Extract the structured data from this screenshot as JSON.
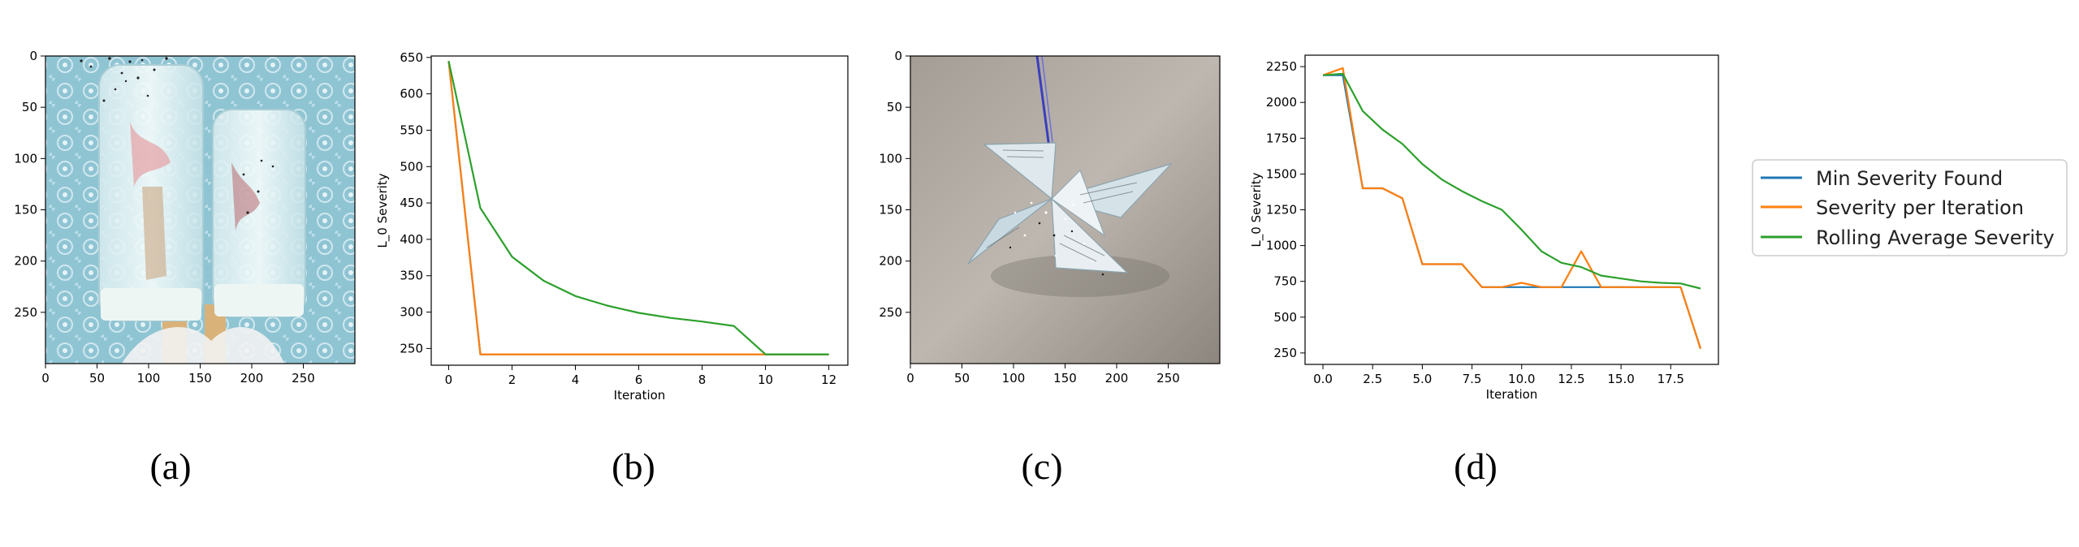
{
  "captions": [
    "(a)",
    "(b)",
    "(c)",
    "(d)"
  ],
  "colors": {
    "min_severity": "#1f77b4",
    "severity_per_iteration": "#ff7f0e",
    "rolling_average": "#2ca02c"
  },
  "legend": {
    "items": [
      "Min Severity Found",
      "Severity per Iteration",
      "Rolling Average Severity"
    ]
  },
  "images": {
    "a": {
      "subject": "popsicles",
      "x_ticks": [
        "0",
        "50",
        "100",
        "150",
        "200",
        "250"
      ],
      "y_ticks": [
        "0",
        "50",
        "100",
        "150",
        "200",
        "250"
      ]
    },
    "c": {
      "subject": "paper-pinwheel",
      "x_ticks": [
        "0",
        "50",
        "100",
        "150",
        "200",
        "250"
      ],
      "y_ticks": [
        "0",
        "50",
        "100",
        "150",
        "200",
        "250"
      ]
    }
  },
  "chart_data": [
    {
      "id": "b",
      "type": "line",
      "xlabel": "Iteration",
      "ylabel": "L_0 Severity",
      "xlim": [
        -0.55,
        12.6
      ],
      "ylim": [
        227,
        652
      ],
      "x_ticks": [
        0,
        2,
        4,
        6,
        8,
        10,
        12
      ],
      "x_tick_labels": [
        "0",
        "2",
        "4",
        "6",
        "8",
        "10",
        "12"
      ],
      "y_ticks": [
        250,
        300,
        350,
        400,
        450,
        500,
        550,
        600,
        650
      ],
      "y_tick_labels": [
        "250",
        "300",
        "350",
        "400",
        "450",
        "500",
        "550",
        "600",
        "650"
      ],
      "series": [
        {
          "name": "Min Severity Found",
          "x": [
            0,
            1,
            2,
            3,
            4,
            5,
            6,
            7,
            8,
            9,
            10,
            11,
            12
          ],
          "values": [
            645,
            242,
            242,
            242,
            242,
            242,
            242,
            242,
            242,
            242,
            242,
            242,
            242
          ]
        },
        {
          "name": "Severity per Iteration",
          "x": [
            0,
            1,
            2,
            3,
            4,
            5,
            6,
            7,
            8,
            9,
            10,
            11,
            12
          ],
          "values": [
            645,
            242,
            242,
            242,
            242,
            242,
            242,
            242,
            242,
            242,
            242,
            242,
            242
          ]
        },
        {
          "name": "Rolling Average Severity",
          "x": [
            0,
            1,
            2,
            3,
            4,
            5,
            6,
            7,
            8,
            9,
            10,
            11,
            12
          ],
          "values": [
            645,
            443,
            376,
            343,
            322,
            309,
            299,
            292,
            287,
            281,
            242,
            242,
            242
          ]
        }
      ]
    },
    {
      "id": "d",
      "type": "line",
      "xlabel": "Iteration",
      "ylabel": "L_0 Severity",
      "xlim": [
        -0.9,
        19.9
      ],
      "ylim": [
        170,
        2330
      ],
      "x_ticks": [
        0,
        2.5,
        5,
        7.5,
        10,
        12.5,
        15,
        17.5
      ],
      "x_tick_labels": [
        "0.0",
        "2.5",
        "5.0",
        "7.5",
        "10.0",
        "12.5",
        "15.0",
        "17.5"
      ],
      "y_ticks": [
        250,
        500,
        750,
        1000,
        1250,
        1500,
        1750,
        2000,
        2250
      ],
      "y_tick_labels": [
        "250",
        "500",
        "750",
        "1000",
        "1250",
        "1500",
        "1750",
        "2000",
        "2250"
      ],
      "series": [
        {
          "name": "Min Severity Found",
          "x": [
            0,
            1,
            2,
            3,
            4,
            5,
            6,
            7,
            8,
            9,
            10,
            11,
            12,
            13,
            14,
            15,
            16,
            17,
            18,
            19
          ],
          "values": [
            2190,
            2190,
            1400,
            1400,
            1330,
            870,
            870,
            870,
            710,
            710,
            710,
            710,
            710,
            710,
            710,
            710,
            710,
            710,
            710,
            280
          ]
        },
        {
          "name": "Severity per Iteration",
          "x": [
            0,
            1,
            2,
            3,
            4,
            5,
            6,
            7,
            8,
            9,
            10,
            11,
            12,
            13,
            14,
            15,
            16,
            17,
            18,
            19
          ],
          "values": [
            2190,
            2240,
            1400,
            1400,
            1330,
            870,
            870,
            870,
            710,
            710,
            740,
            710,
            710,
            960,
            710,
            710,
            710,
            710,
            710,
            280
          ]
        },
        {
          "name": "Rolling Average Severity",
          "x": [
            0,
            1,
            2,
            3,
            4,
            5,
            6,
            7,
            8,
            9,
            10,
            11,
            12,
            13,
            14,
            15,
            16,
            17,
            18,
            19
          ],
          "values": [
            2190,
            2200,
            1940,
            1810,
            1710,
            1570,
            1460,
            1380,
            1310,
            1250,
            1110,
            960,
            880,
            850,
            790,
            770,
            750,
            740,
            735,
            700
          ]
        }
      ]
    }
  ]
}
